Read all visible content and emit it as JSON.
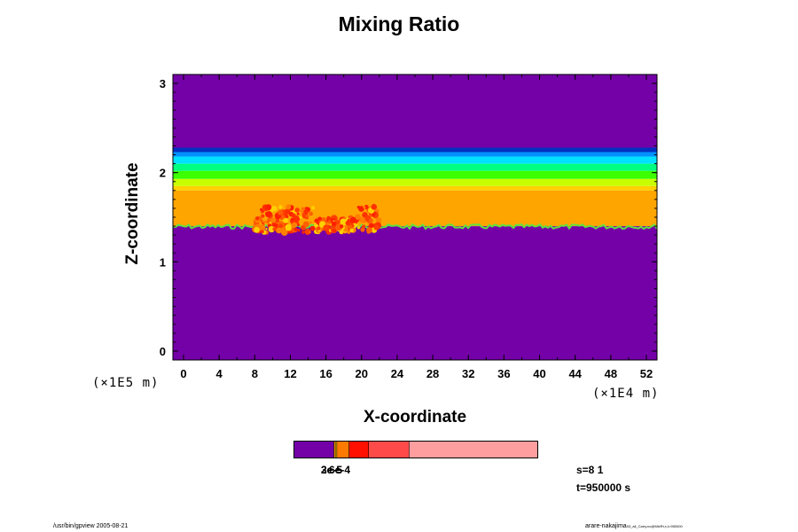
{
  "title": "Mixing Ratio",
  "chart_data": {
    "type": "heatmap",
    "title": "Mixing Ratio",
    "xlabel": "X-coordinate",
    "ylabel": "Z-coordinate",
    "x_unit": "(×1E4 m)",
    "y_unit": "(×1E5 m)",
    "xlim": [
      0,
      52
    ],
    "ylim": [
      -0.1,
      3.1
    ],
    "xticks": [
      "0",
      "4",
      "8",
      "12",
      "16",
      "20",
      "24",
      "28",
      "32",
      "36",
      "40",
      "44",
      "48",
      "52"
    ],
    "yticks": [
      "0",
      "1",
      "2",
      "3"
    ],
    "layers": [
      {
        "z_bottom": -0.1,
        "z_top": 1.4,
        "color": "#7400a8"
      },
      {
        "z_bottom": 1.4,
        "z_top": 1.8,
        "color": "#ffa500"
      },
      {
        "z_bottom": 1.8,
        "z_top": 1.85,
        "color": "#ffd000"
      },
      {
        "z_bottom": 1.85,
        "z_top": 1.93,
        "color": "#c8ff00"
      },
      {
        "z_bottom": 1.93,
        "z_top": 2.02,
        "color": "#3cff00"
      },
      {
        "z_bottom": 2.02,
        "z_top": 2.1,
        "color": "#00ff80"
      },
      {
        "z_bottom": 2.1,
        "z_top": 2.18,
        "color": "#00e0ff"
      },
      {
        "z_bottom": 2.18,
        "z_top": 2.23,
        "color": "#0090ff"
      },
      {
        "z_bottom": 2.23,
        "z_top": 2.28,
        "color": "#0030c0"
      },
      {
        "z_bottom": 2.28,
        "z_top": 3.1,
        "color": "#7400a8"
      }
    ],
    "hotspot": {
      "x_range": [
        8,
        22
      ],
      "z_range": [
        1.33,
        1.62
      ]
    },
    "colorbar": {
      "colors": [
        "#7400a8",
        "#ff9000",
        "#ffd000",
        "#ff7a00",
        "#ff1000",
        "#ff4a4a",
        "#ff9e9e"
      ],
      "fractions": [
        0.165,
        0.006,
        0.006,
        0.05,
        0.08,
        0.165,
        0.528
      ],
      "labels": [
        "2e-5",
        "3e-5",
        "6e-4"
      ]
    }
  },
  "info": {
    "s": "s=8 1",
    "t": "t=950000 s"
  },
  "footer_left": "/usr/bin/gpview 2005-08-21",
  "footer_right_main": "arare-nakajima",
  "footer_right_small": "03_all_Carry.nc@MixRt,x,t=950000"
}
